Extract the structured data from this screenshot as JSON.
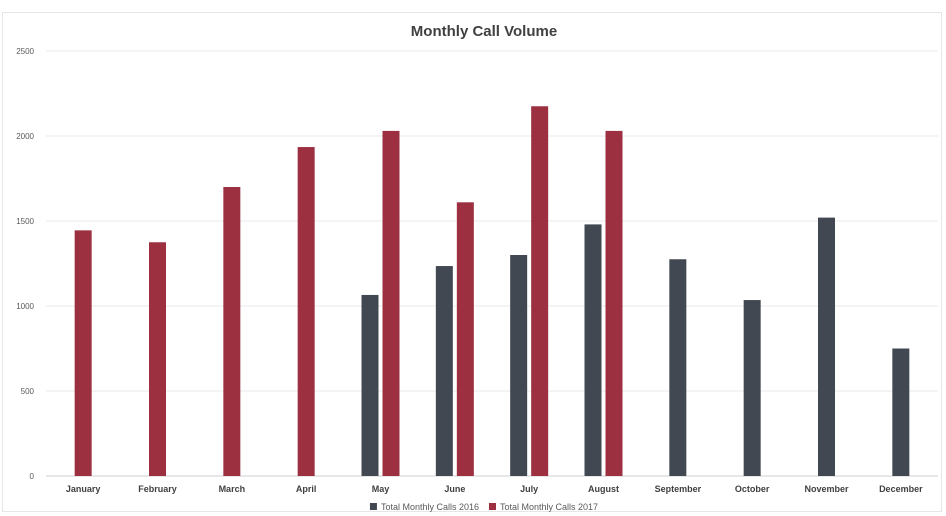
{
  "chart_data": {
    "type": "bar",
    "title": "Monthly Call Volume",
    "xlabel": "",
    "ylabel": "",
    "ylim": [
      0,
      2500
    ],
    "yticks": [
      0,
      500,
      1000,
      1500,
      2000,
      2500
    ],
    "grid": true,
    "legend_position": "bottom",
    "categories": [
      "January",
      "February",
      "March",
      "April",
      "May",
      "June",
      "July",
      "August",
      "September",
      "October",
      "November",
      "December"
    ],
    "series": [
      {
        "name": "Total Monthly Calls 2016",
        "color": "#414851",
        "values": [
          null,
          null,
          null,
          null,
          1065,
          1235,
          1300,
          1480,
          1275,
          1035,
          1520,
          750
        ]
      },
      {
        "name": "Total Monthly Calls 2017",
        "color": "#9c3040",
        "values": [
          1445,
          1375,
          1700,
          1935,
          2030,
          1610,
          2175,
          2030,
          null,
          null,
          null,
          null
        ]
      }
    ]
  }
}
